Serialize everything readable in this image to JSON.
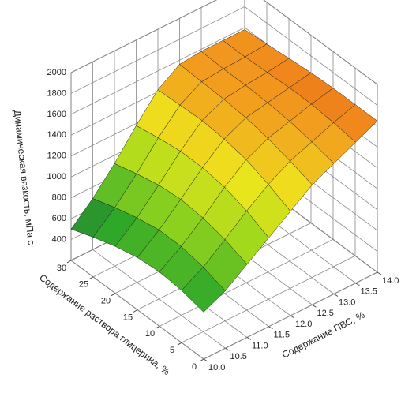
{
  "chart_data": {
    "type": "surface",
    "z_label": "Динамическая вязкость, мПа с",
    "x_label": "Содержание раствора глицерина, %",
    "y_label": "Содержание ПВС, %",
    "x": [
      0,
      5,
      10,
      15,
      20,
      25,
      30
    ],
    "y": [
      10,
      10.5,
      11,
      11.5,
      12,
      12.5,
      13,
      13.5,
      14
    ],
    "values": [
      [
        650,
        750,
        900,
        1050,
        1200,
        1350,
        1450,
        1550,
        1650
      ],
      [
        700,
        820,
        980,
        1150,
        1300,
        1420,
        1500,
        1580,
        1650
      ],
      [
        720,
        860,
        1030,
        1220,
        1380,
        1480,
        1540,
        1600,
        1650
      ],
      [
        700,
        860,
        1050,
        1250,
        1420,
        1520,
        1560,
        1600,
        1640
      ],
      [
        650,
        820,
        1030,
        1250,
        1440,
        1540,
        1570,
        1590,
        1620
      ],
      [
        580,
        760,
        980,
        1220,
        1430,
        1550,
        1570,
        1580,
        1600
      ],
      [
        500,
        690,
        920,
        1180,
        1420,
        1560,
        1580,
        1580,
        1580
      ]
    ],
    "xlim": [
      0,
      30
    ],
    "xticks": [
      0,
      5,
      10,
      15,
      20,
      25,
      30
    ],
    "ylim": [
      10,
      14
    ],
    "yticks": [
      {
        "value": 10,
        "label": "10.0"
      },
      10.5,
      {
        "value": 11,
        "label": "11.0"
      },
      11.5,
      {
        "value": 12,
        "label": "12.0"
      },
      12.5,
      {
        "value": 13,
        "label": "13.0"
      },
      13.5,
      {
        "value": 14,
        "label": "14.0"
      }
    ],
    "zlim": [
      200,
      2000
    ],
    "zticks": [
      400,
      600,
      800,
      1000,
      1200,
      1400,
      1600,
      1800,
      2000
    ],
    "colormap": [
      "#1f5a3c",
      "#2fa82a",
      "#9bd81c",
      "#eee61c",
      "#f29a1e",
      "#e2180f"
    ],
    "grid": true
  }
}
